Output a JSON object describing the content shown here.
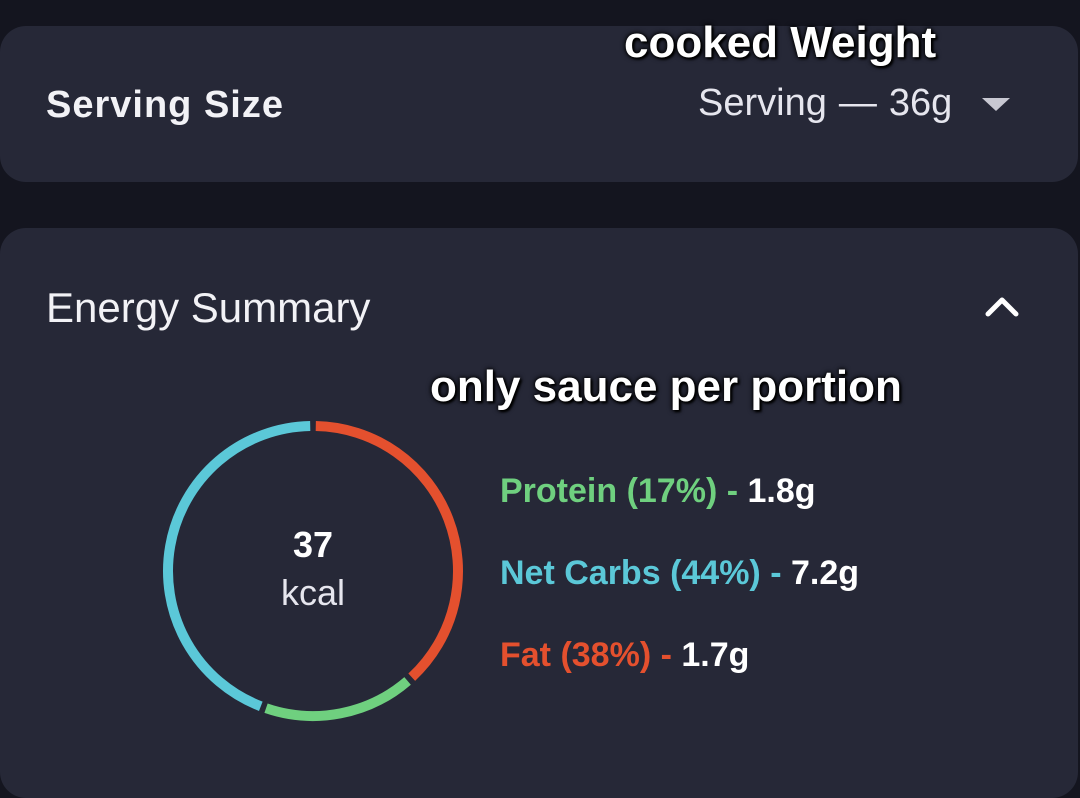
{
  "annotations": {
    "top": "cooked Weight",
    "middle": "only sauce per portion"
  },
  "serving": {
    "label": "Serving Size",
    "selected_unit": "Serving",
    "dash": "—",
    "selected_amount": "36g",
    "dropdown_icon": "chevron-down-icon"
  },
  "energy": {
    "title": "Energy Summary",
    "collapse_icon": "chevron-up-icon",
    "calories": "37",
    "calories_unit": "kcal",
    "macros": [
      {
        "name": "Protein",
        "percent_label": "(17%)",
        "amount": "1.8g",
        "percent": 17,
        "color": "#6fd07f"
      },
      {
        "name": "Net Carbs",
        "percent_label": "(44%)",
        "amount": "7.2g",
        "percent": 44,
        "color": "#5bc8d8"
      },
      {
        "name": "Fat",
        "percent_label": "(38%)",
        "amount": "1.7g",
        "percent": 38,
        "color": "#e4502e"
      }
    ]
  },
  "chart_data": {
    "type": "pie",
    "categories": [
      "Fat",
      "Protein",
      "Net Carbs"
    ],
    "values": [
      38,
      17,
      44
    ],
    "colors": [
      "#e4502e",
      "#6fd07f",
      "#5bc8d8"
    ],
    "title": "",
    "center_value": "37",
    "center_unit": "kcal"
  }
}
